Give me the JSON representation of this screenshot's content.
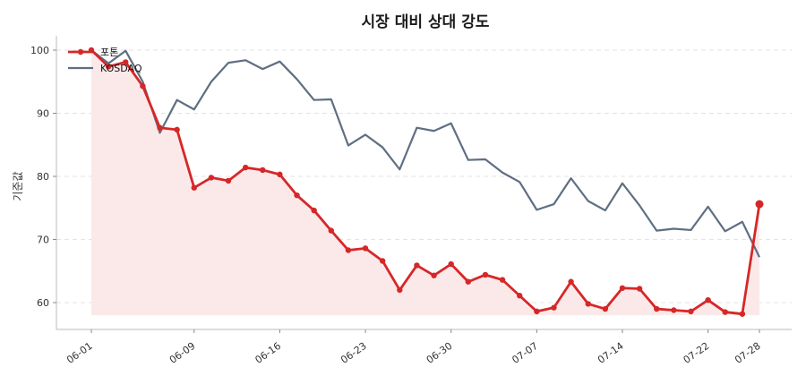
{
  "chart_data": {
    "type": "line",
    "title": "시장 대비 상대 강도",
    "xlabel": "",
    "ylabel": "기준값",
    "ylim": [
      56,
      102
    ],
    "yticks": [
      60,
      70,
      80,
      90,
      100
    ],
    "x_tick_labels": [
      "06-01",
      "06-09",
      "06-16",
      "06-23",
      "06-30",
      "07-07",
      "07-14",
      "07-22",
      "07-28"
    ],
    "grid": "horizontal dashed",
    "legend_position": "top-left",
    "colors": {
      "primary": "#d62728",
      "secondary": "#5f6e82",
      "fill": "#fbe9e9"
    },
    "x": [
      "06-01",
      "06-02",
      "06-03",
      "06-04",
      "06-05",
      "06-08",
      "06-09",
      "06-10",
      "06-11",
      "06-12",
      "06-15",
      "06-16",
      "06-17",
      "06-18",
      "06-19",
      "06-22",
      "06-23",
      "06-24",
      "06-25",
      "06-26",
      "06-29",
      "06-30",
      "07-01",
      "07-02",
      "07-03",
      "07-06",
      "07-07",
      "07-08",
      "07-09",
      "07-10",
      "07-13",
      "07-14",
      "07-15",
      "07-16",
      "07-17",
      "07-20",
      "07-21",
      "07-22",
      "07-23",
      "07-24",
      "07-27",
      "07-28"
    ],
    "series": [
      {
        "name": "포톤",
        "values": [
          100.0,
          97.4,
          98.1,
          94.3,
          87.7,
          87.4,
          78.2,
          79.8,
          79.3,
          81.4,
          81.0,
          80.3,
          77.0,
          74.6,
          71.4,
          68.3,
          68.6,
          66.6,
          62.0,
          65.9,
          64.3,
          66.1,
          63.3,
          64.4,
          63.6,
          61.1,
          58.6,
          59.2,
          63.3,
          59.8,
          59.0,
          62.3,
          62.2,
          59.0,
          58.8,
          58.6,
          60.4,
          58.5,
          58.2,
          75.6,
          null,
          null
        ]
      },
      {
        "name": "KOSDAQ",
        "values": [
          100.0,
          97.9,
          99.9,
          95.0,
          86.9,
          92.1,
          90.6,
          95.0,
          98.0,
          98.4,
          97.0,
          98.2,
          95.4,
          92.1,
          92.2,
          84.9,
          86.6,
          84.6,
          81.1,
          87.7,
          87.2,
          88.4,
          82.6,
          82.7,
          80.6,
          79.1,
          74.7,
          75.6,
          79.7,
          76.1,
          74.6,
          78.9,
          75.4,
          71.4,
          71.7,
          71.5,
          75.2,
          71.3,
          72.8,
          67.2,
          null,
          null
        ]
      }
    ]
  }
}
